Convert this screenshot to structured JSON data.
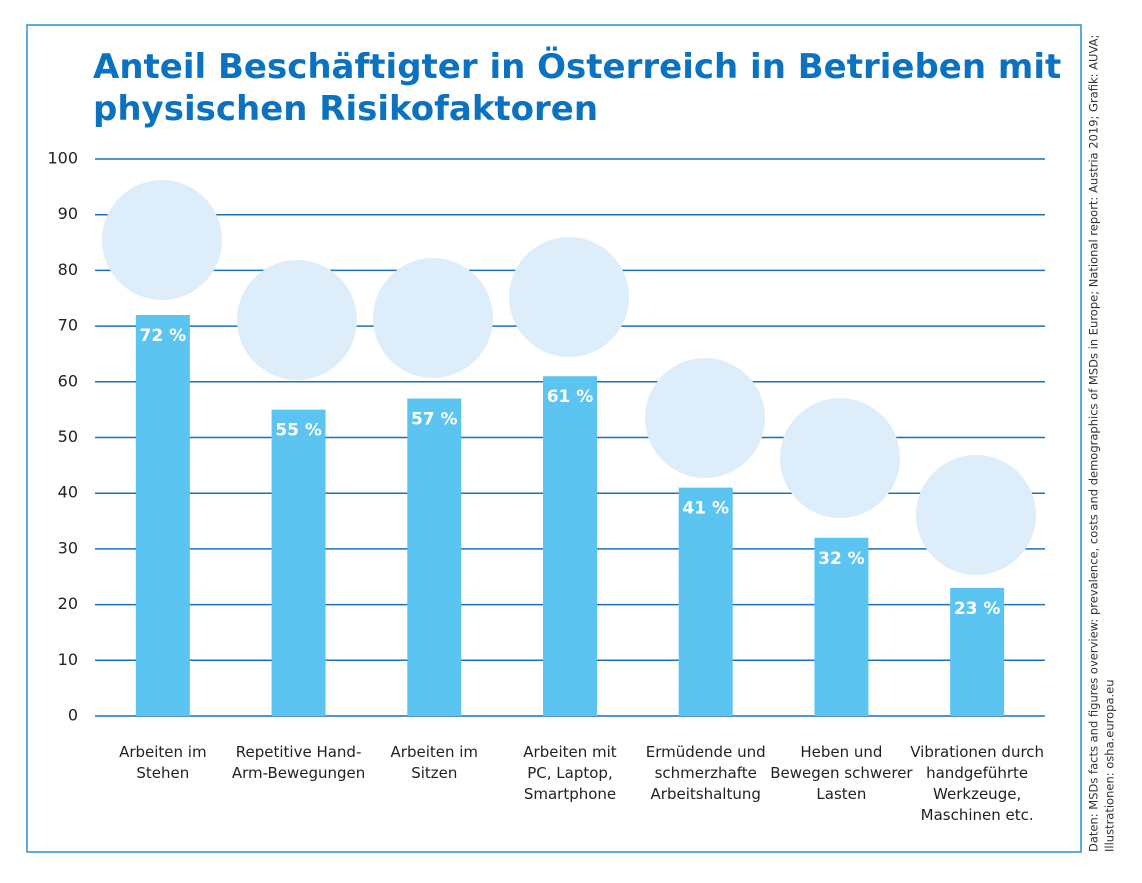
{
  "chart_data": {
    "type": "bar",
    "title": "Anteil Beschäftigter in Österreich in Betrieben mit\nphysischen Risikofaktoren",
    "categories": [
      "Arbeiten im\nStehen",
      "Repetitive Hand-\nArm-Bewegungen",
      "Arbeiten im\nSitzen",
      "Arbeiten mit\nPC, Laptop,\nSmartphone",
      "Ermüdende und\nschmerzhafte\nArbeitshaltung",
      "Heben und\nBewegen schwerer\nLasten",
      "Vibrationen durch\nhandgeführte\nWerkzeuge,\nMaschinen etc."
    ],
    "values": [
      72,
      55,
      57,
      61,
      41,
      32,
      23
    ],
    "value_labels": [
      "72 %",
      "55 %",
      "57 %",
      "61 %",
      "41 %",
      "32 %",
      "23 %"
    ],
    "color": "#5bc4f1",
    "ylim": [
      0,
      100
    ],
    "yticks": [
      0,
      10,
      20,
      30,
      40,
      50,
      60,
      70,
      80,
      90,
      100
    ],
    "grid": true,
    "source": [
      "Daten: MSDs facts and figures overview: prevalence, costs and demographics of MSDs in Europe; National report: Austria 2019; Grafik: AUVA;",
      "Illustrationen: osha.europa.eu"
    ]
  }
}
